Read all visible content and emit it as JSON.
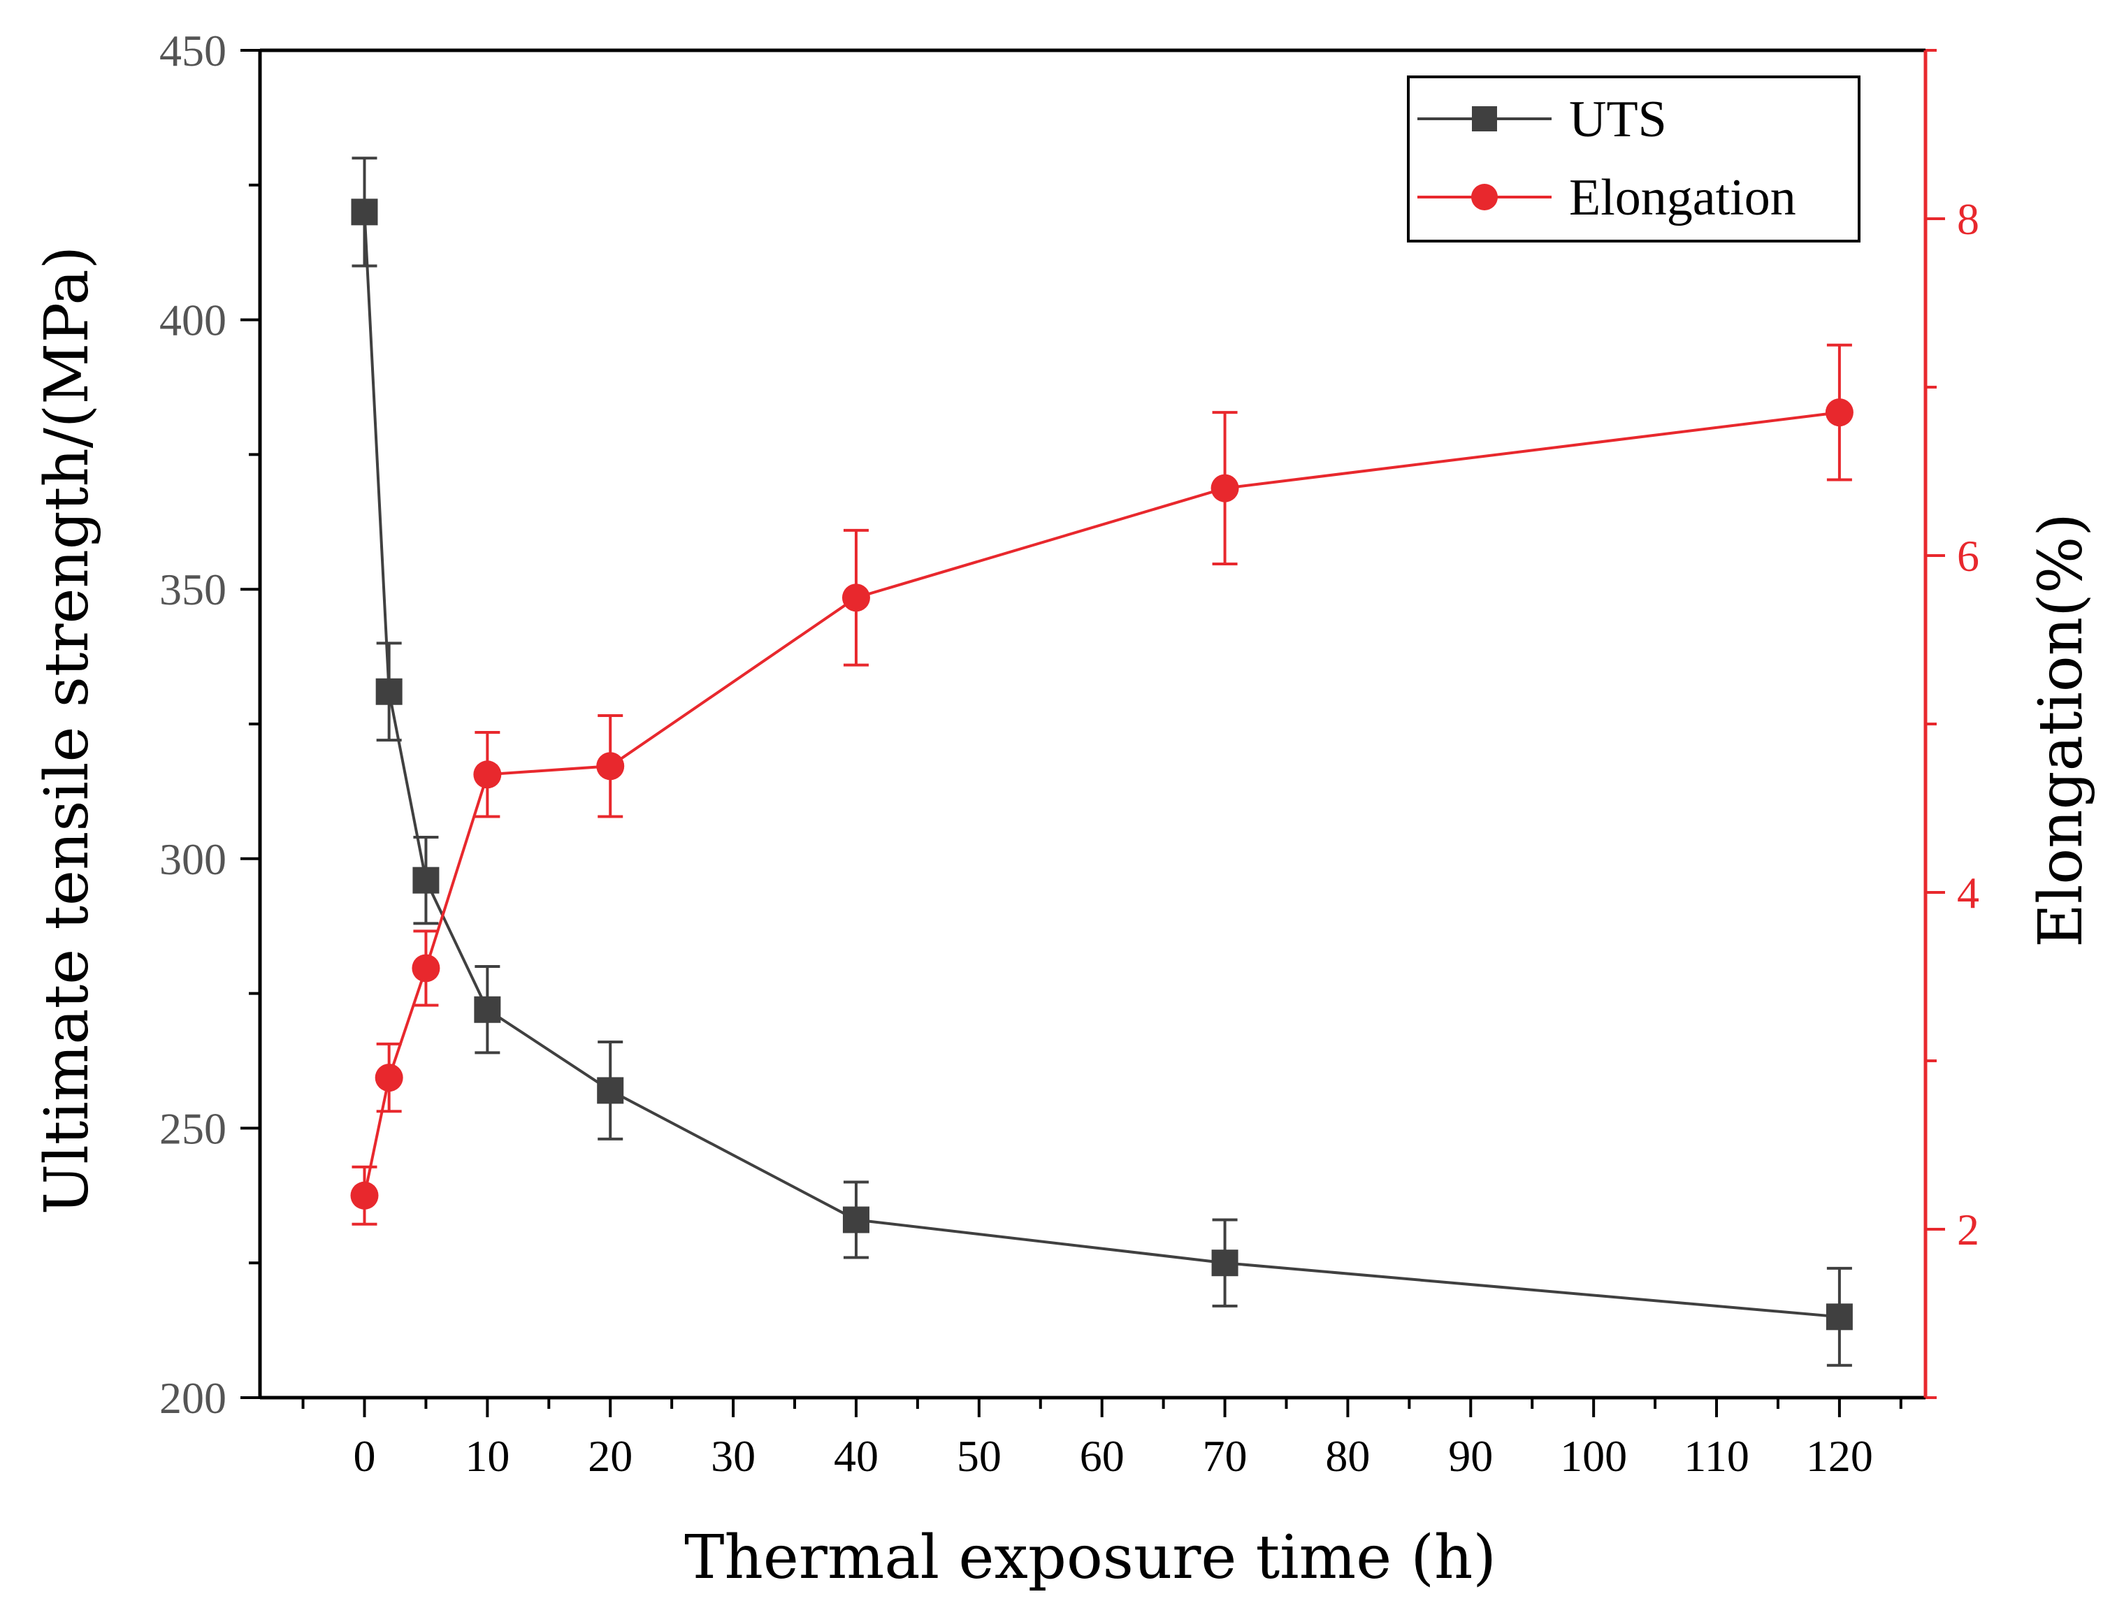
{
  "chart_data": {
    "type": "line",
    "xlabel": "Thermal exposure time (h)",
    "ylabel_left": "Ultimate tensile strength/(MPa)",
    "ylabel_right": "Elongation(%)",
    "xlim": [
      -8.5,
      127
    ],
    "ylim_left": [
      200,
      450
    ],
    "ylim_right": [
      1,
      9
    ],
    "x_ticks": [
      0,
      10,
      20,
      30,
      40,
      50,
      60,
      70,
      80,
      90,
      100,
      110,
      120
    ],
    "y_left_ticks": [
      200,
      250,
      300,
      350,
      400,
      450
    ],
    "y_right_ticks": [
      2,
      4,
      6,
      8
    ],
    "legend_position": "top-right",
    "colors": {
      "uts": "#404040",
      "elongation": "#e8282d",
      "axis": "#000000",
      "left_tick": "#555555"
    },
    "series": [
      {
        "name": "UTS",
        "axis": "left",
        "marker": "square",
        "x": [
          0,
          2,
          5,
          10,
          20,
          40,
          70,
          120
        ],
        "values": [
          420,
          331,
          296,
          272,
          257,
          233,
          225,
          215
        ],
        "errors": [
          10,
          9,
          8,
          8,
          9,
          7,
          8,
          9
        ]
      },
      {
        "name": "Elongation",
        "axis": "right",
        "marker": "circle",
        "x": [
          0,
          2,
          5,
          10,
          20,
          40,
          70,
          120
        ],
        "values": [
          2.2,
          2.9,
          3.55,
          4.7,
          4.75,
          5.75,
          6.4,
          6.85
        ],
        "errors": [
          0.17,
          0.2,
          0.22,
          0.25,
          0.3,
          0.4,
          0.45,
          0.4
        ]
      }
    ]
  }
}
